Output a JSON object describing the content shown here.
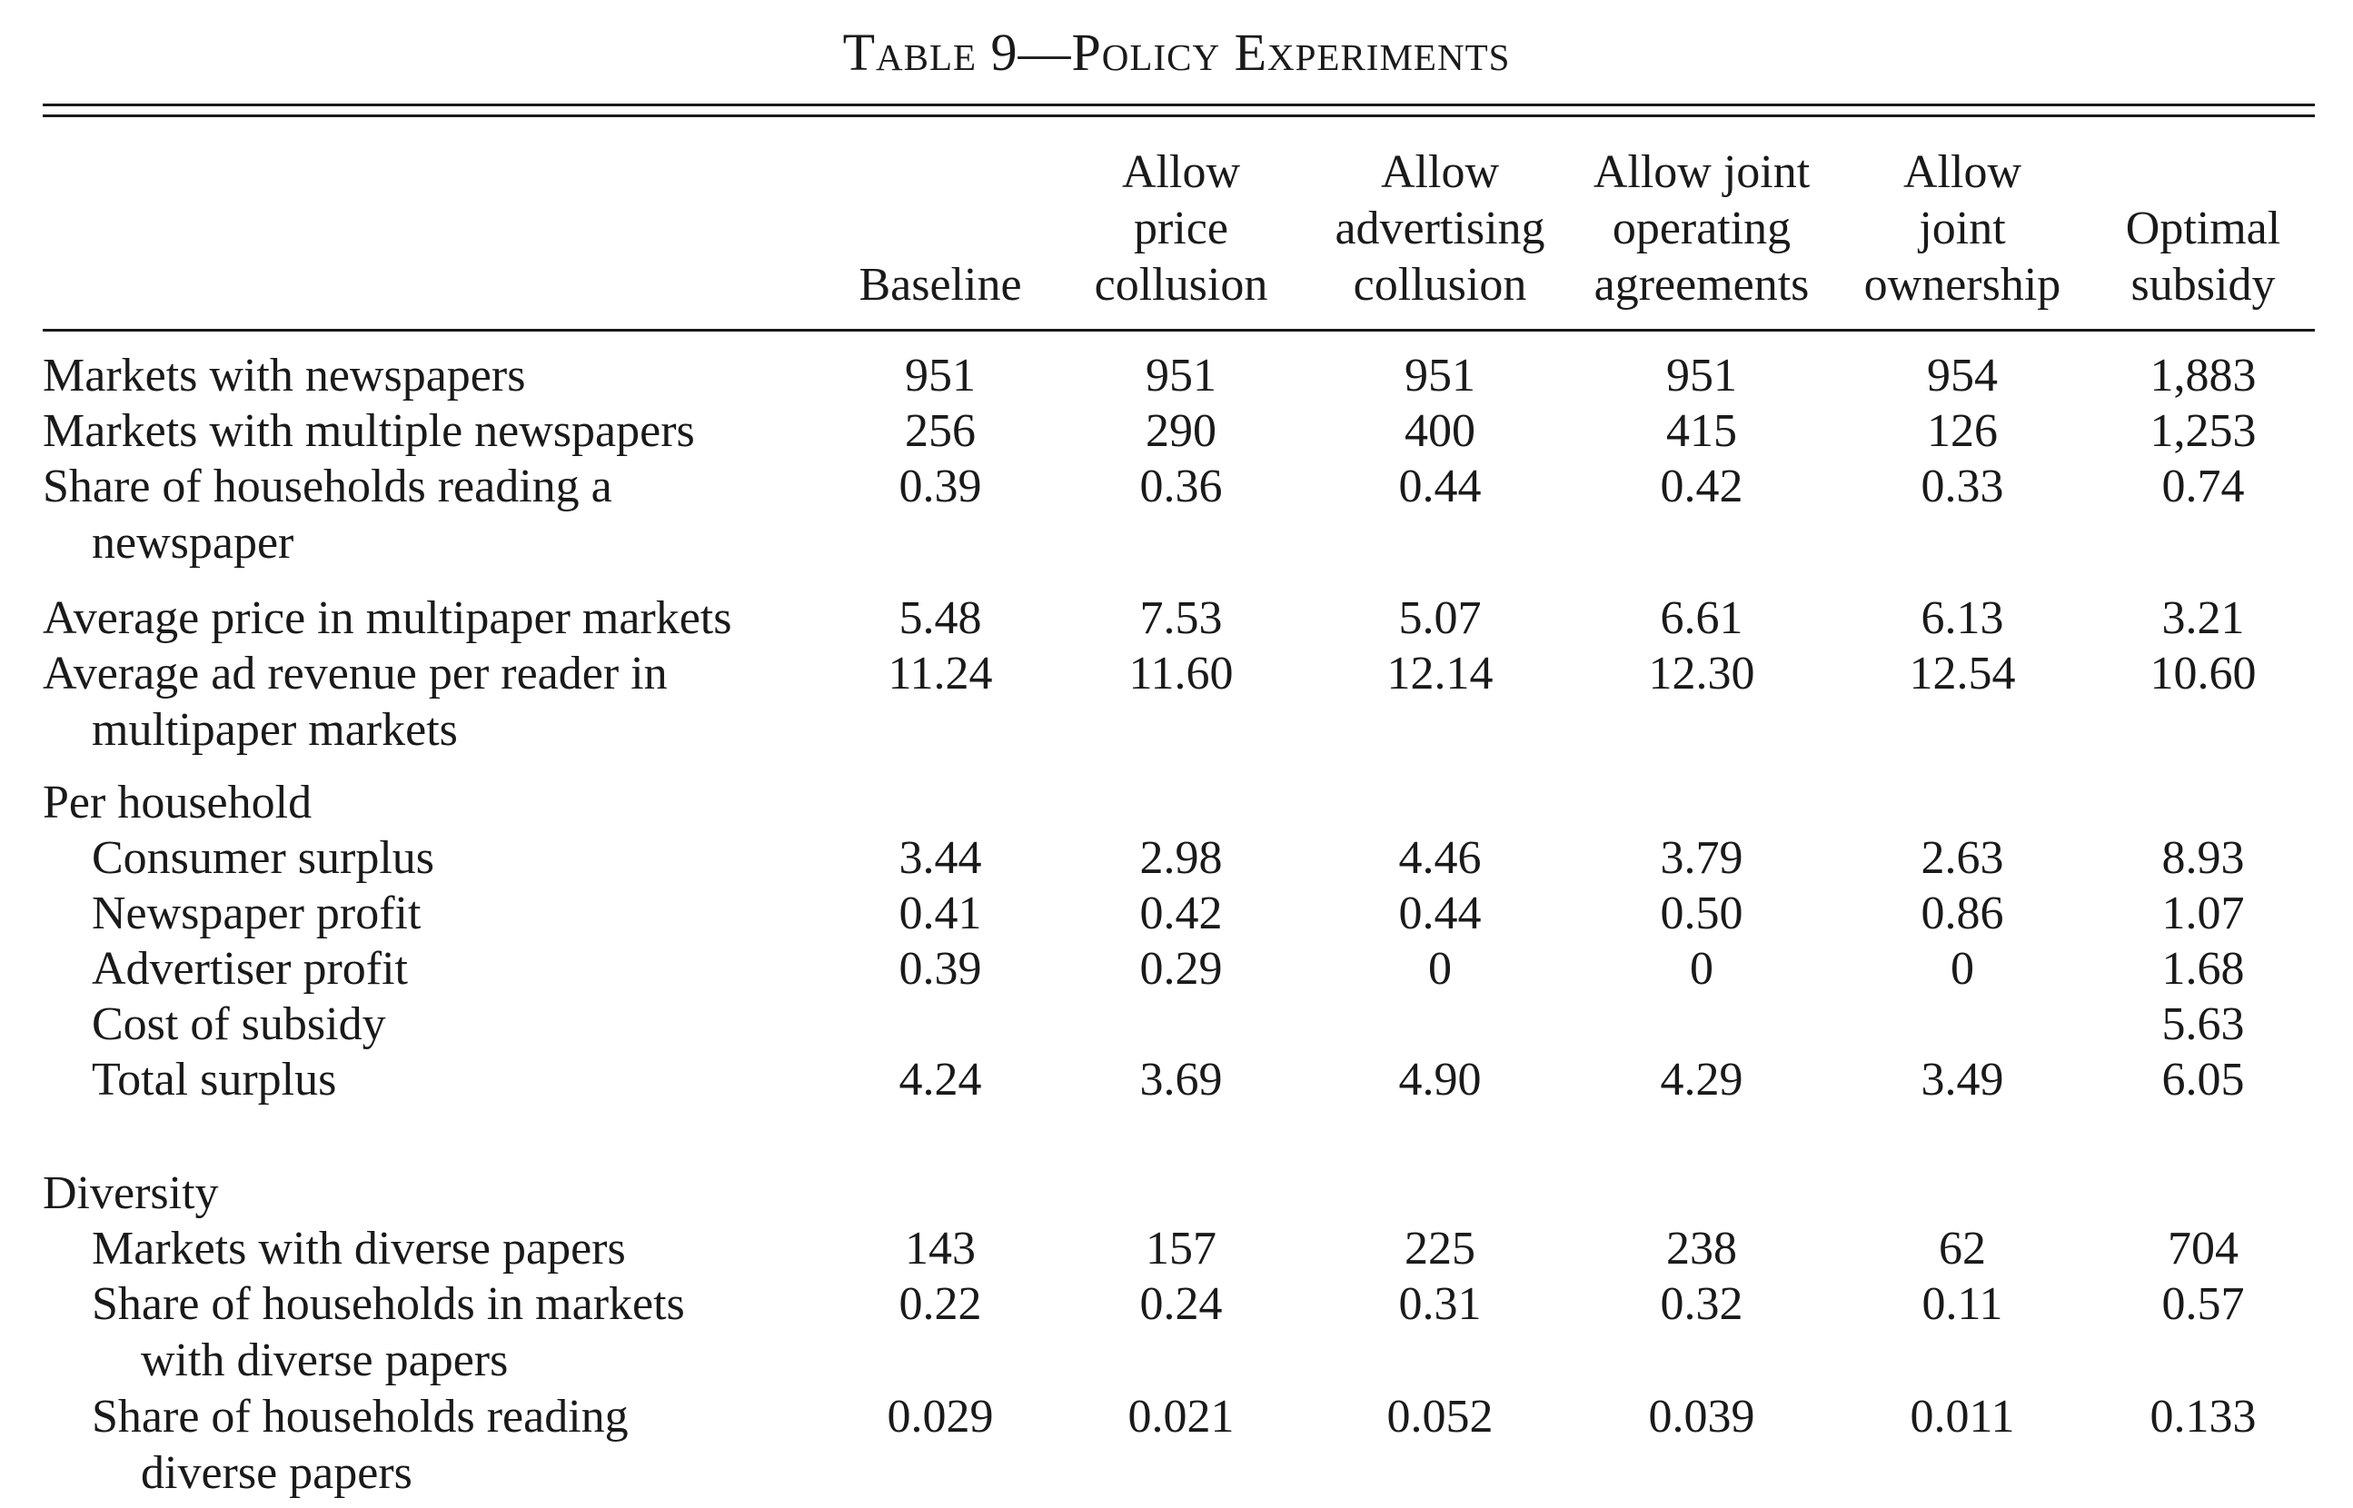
{
  "table": {
    "title": "Table 9—Policy Experiments",
    "columns": [
      [
        "Baseline"
      ],
      [
        "Allow",
        "price",
        "collusion"
      ],
      [
        "Allow",
        "advertising",
        "collusion"
      ],
      [
        "Allow joint",
        "operating",
        "agreements"
      ],
      [
        "Allow",
        "joint",
        "ownership"
      ],
      [
        "Optimal",
        "subsidy"
      ]
    ],
    "rows": [
      {
        "label": [
          "Markets with newspapers"
        ],
        "indent": 0,
        "values": [
          "951",
          "951",
          "951",
          "951",
          "954",
          "1,883"
        ]
      },
      {
        "label": [
          "Markets with multiple newspapers"
        ],
        "indent": 0,
        "values": [
          "256",
          "290",
          "400",
          "415",
          "126",
          "1,253"
        ]
      },
      {
        "label": [
          "Share of households reading a",
          "newspaper"
        ],
        "indent": 0,
        "values": [
          "0.39",
          "0.36",
          "0.44",
          "0.42",
          "0.33",
          "0.74"
        ]
      },
      {
        "label": [
          "Average price in multipaper markets"
        ],
        "indent": 0,
        "values": [
          "5.48",
          "7.53",
          "5.07",
          "6.61",
          "6.13",
          "3.21"
        ]
      },
      {
        "label": [
          "Average ad revenue per reader in",
          "multipaper markets"
        ],
        "indent": 0,
        "values": [
          "11.24",
          "11.60",
          "12.14",
          "12.30",
          "12.54",
          "10.60"
        ]
      },
      {
        "label": [
          "Per household"
        ],
        "indent": 0,
        "values": [
          "",
          "",
          "",
          "",
          "",
          ""
        ]
      },
      {
        "label": [
          "Consumer surplus"
        ],
        "indent": 1,
        "values": [
          "3.44",
          "2.98",
          "4.46",
          "3.79",
          "2.63",
          "8.93"
        ]
      },
      {
        "label": [
          "Newspaper profit"
        ],
        "indent": 1,
        "values": [
          "0.41",
          "0.42",
          "0.44",
          "0.50",
          "0.86",
          "1.07"
        ]
      },
      {
        "label": [
          "Advertiser profit"
        ],
        "indent": 1,
        "values": [
          "0.39",
          "0.29",
          "0",
          "0",
          "0",
          "1.68"
        ]
      },
      {
        "label": [
          "Cost of subsidy"
        ],
        "indent": 1,
        "values": [
          "",
          "",
          "",
          "",
          "",
          "5.63"
        ]
      },
      {
        "label": [
          "Total surplus"
        ],
        "indent": 1,
        "values": [
          "4.24",
          "3.69",
          "4.90",
          "4.29",
          "3.49",
          "6.05"
        ]
      },
      {
        "label": [
          "Diversity"
        ],
        "indent": 0,
        "values": [
          "",
          "",
          "",
          "",
          "",
          ""
        ]
      },
      {
        "label": [
          "Markets with diverse papers"
        ],
        "indent": 1,
        "values": [
          "143",
          "157",
          "225",
          "238",
          "62",
          "704"
        ]
      },
      {
        "label": [
          "Share of households in markets",
          "with diverse papers"
        ],
        "indent": 1,
        "values": [
          "0.22",
          "0.24",
          "0.31",
          "0.32",
          "0.11",
          "0.57"
        ]
      },
      {
        "label": [
          "Share of households reading",
          "diverse papers"
        ],
        "indent": 1,
        "values": [
          "0.029",
          "0.021",
          "0.052",
          "0.039",
          "0.011",
          "0.133"
        ]
      }
    ]
  }
}
